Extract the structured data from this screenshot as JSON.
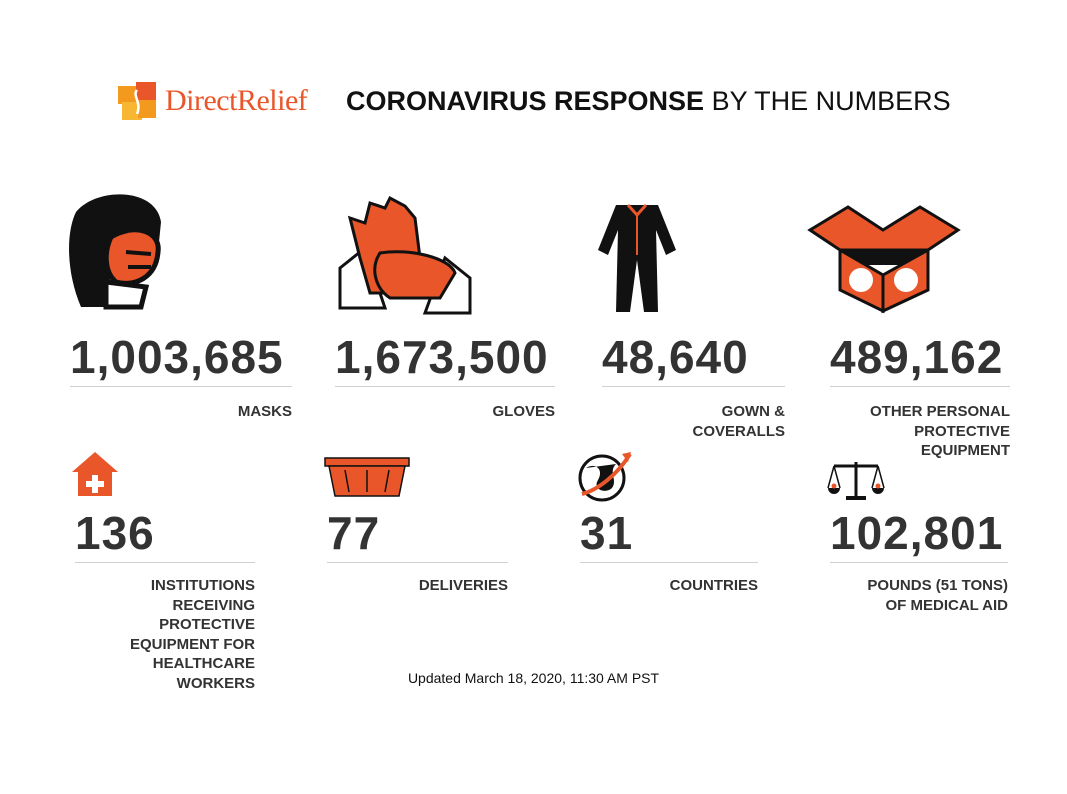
{
  "header": {
    "brand": "DirectRelief",
    "title_bold": "CORONAVIRUS RESPONSE",
    "title_rest": "BY THE NUMBERS"
  },
  "stats": [
    {
      "value": "1,003,685",
      "label": [
        "MASKS"
      ]
    },
    {
      "value": "1,673,500",
      "label": [
        "GLOVES"
      ]
    },
    {
      "value": "48,640",
      "label": [
        "GOWN &",
        "COVERALLS"
      ]
    },
    {
      "value": "489,162",
      "label": [
        "OTHER PERSONAL",
        "PROTECTIVE",
        "EQUIPMENT"
      ]
    },
    {
      "value": "136",
      "label": [
        "INSTITUTIONS",
        "RECEIVING",
        "PROTECTIVE",
        "EQUIPMENT FOR",
        "HEALTHCARE",
        "WORKERS"
      ]
    },
    {
      "value": "77",
      "label": [
        "DELIVERIES"
      ]
    },
    {
      "value": "31",
      "label": [
        "COUNTRIES"
      ]
    },
    {
      "value": "102,801",
      "label": [
        "POUNDS (51 TONS)",
        "OF MEDICAL AID"
      ]
    }
  ],
  "footer": "Updated March 18, 2020, 11:30 AM PST"
}
